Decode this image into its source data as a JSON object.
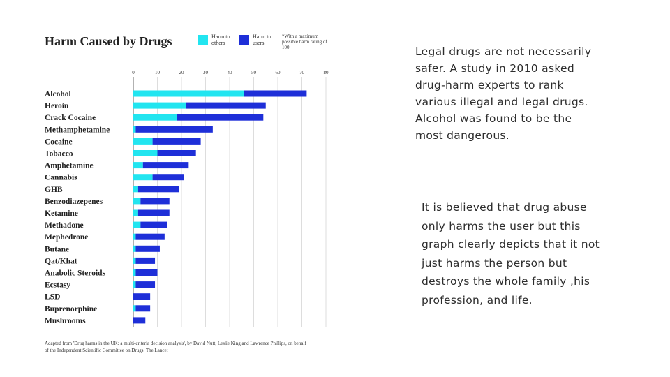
{
  "chart_data": {
    "type": "bar",
    "orientation": "horizontal",
    "stacked": true,
    "title": "Harm Caused by Drugs",
    "xlim": [
      0,
      80
    ],
    "x_ticks": [
      0,
      10,
      20,
      30,
      40,
      50,
      60,
      70,
      80
    ],
    "categories": [
      "Alcohol",
      "Heroin",
      "Crack Cocaine",
      "Methamphetamine",
      "Cocaine",
      "Tobacco",
      "Amphetamine",
      "Cannabis",
      "GHB",
      "Benzodiazepenes",
      "Ketamine",
      "Methadone",
      "Mephedrone",
      "Butane",
      "Qat/Khat",
      "Anabolic Steroids",
      "Ecstasy",
      "LSD",
      "Buprenorphine",
      "Mushrooms"
    ],
    "series": [
      {
        "name": "Harm to others",
        "color": "#22e5f0",
        "values": [
          46,
          22,
          18,
          1,
          8,
          10,
          4,
          8,
          2,
          3,
          2,
          3,
          1,
          1,
          1,
          1,
          1,
          0,
          1,
          0
        ]
      },
      {
        "name": "Harm to users",
        "color": "#1e2fd8",
        "values": [
          26,
          33,
          36,
          32,
          20,
          16,
          19,
          13,
          17,
          12,
          13,
          11,
          12,
          10,
          8,
          9,
          8,
          7,
          6,
          5
        ]
      }
    ],
    "legend": [
      {
        "label": "Harm to others",
        "color": "#22e5f0"
      },
      {
        "label": "Harm to users",
        "color": "#1e2fd8"
      }
    ],
    "legend_note": "*With a maximum possible harm rating of 100",
    "source": "Adapted from 'Drug harms in the UK: a multi-criteria decision analysis', by David Nutt, Leslie King and Lawrence Phillips, on behalf of the Independent Scientific Committee on Drugs. The Lancet"
  },
  "text": {
    "paragraph_1": "Legal drugs are not necessarily safer. A study in 2010 asked drug-harm experts to rank various illegal and legal drugs. Alcohol was found to be the most dangerous.",
    "paragraph_2": "It is believed that drug abuse only harms the user but this graph clearly depicts that it not just harms the person but destroys the whole family ,his profession, and life."
  }
}
